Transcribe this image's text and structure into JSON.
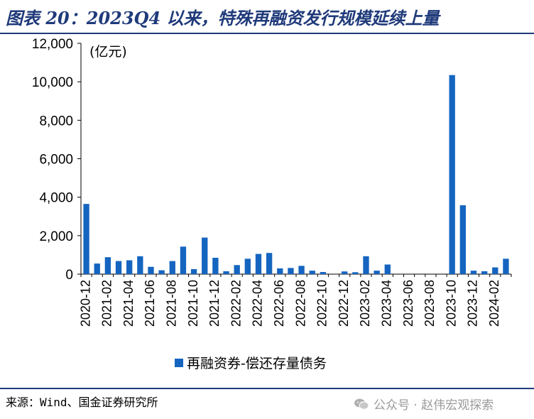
{
  "title": "图表 20：2023Q4 以来，特殊再融资发行规模延续上量",
  "source": "来源：Wind、国金证券研究所",
  "watermark": "公众号 · 赵伟宏观探索",
  "colors": {
    "bar": "#1565c0",
    "title": "#1f3a7a"
  },
  "chart_data": {
    "type": "bar",
    "unit_label": "(亿元)",
    "ylim": [
      0,
      12000
    ],
    "yticks": [
      0,
      2000,
      4000,
      6000,
      8000,
      10000,
      12000
    ],
    "ytick_labels": [
      "0",
      "2,000",
      "4,000",
      "6,000",
      "8,000",
      "10,000",
      "12,000"
    ],
    "grid": false,
    "legend_position": "bottom",
    "categories": [
      "2020-12",
      "2021-01",
      "2021-02",
      "2021-03",
      "2021-04",
      "2021-05",
      "2021-06",
      "2021-07",
      "2021-08",
      "2021-09",
      "2021-10",
      "2021-11",
      "2021-12",
      "2022-01",
      "2022-02",
      "2022-03",
      "2022-04",
      "2022-05",
      "2022-06",
      "2022-07",
      "2022-08",
      "2022-09",
      "2022-10",
      "2022-11",
      "2022-12",
      "2023-01",
      "2023-02",
      "2023-03",
      "2023-04",
      "2023-05",
      "2023-06",
      "2023-07",
      "2023-08",
      "2023-09",
      "2023-10",
      "2023-11",
      "2023-12",
      "2024-01",
      "2024-02",
      "2024-03"
    ],
    "tick_labels": [
      "2020-12",
      "2021-02",
      "2021-04",
      "2021-06",
      "2021-08",
      "2021-10",
      "2021-12",
      "2022-02",
      "2022-04",
      "2022-06",
      "2022-08",
      "2022-10",
      "2022-12",
      "2023-02",
      "2023-04",
      "2023-06",
      "2023-08",
      "2023-10",
      "2023-12",
      "2024-02"
    ],
    "series": [
      {
        "name": "再融资券-偿还存量债务",
        "values": [
          3650,
          550,
          880,
          680,
          720,
          930,
          380,
          200,
          680,
          1430,
          260,
          1900,
          850,
          150,
          470,
          800,
          1050,
          1100,
          300,
          320,
          430,
          180,
          110,
          0,
          140,
          100,
          930,
          180,
          500,
          0,
          0,
          0,
          0,
          0,
          10350,
          3580,
          180,
          150,
          350,
          800
        ]
      }
    ]
  }
}
